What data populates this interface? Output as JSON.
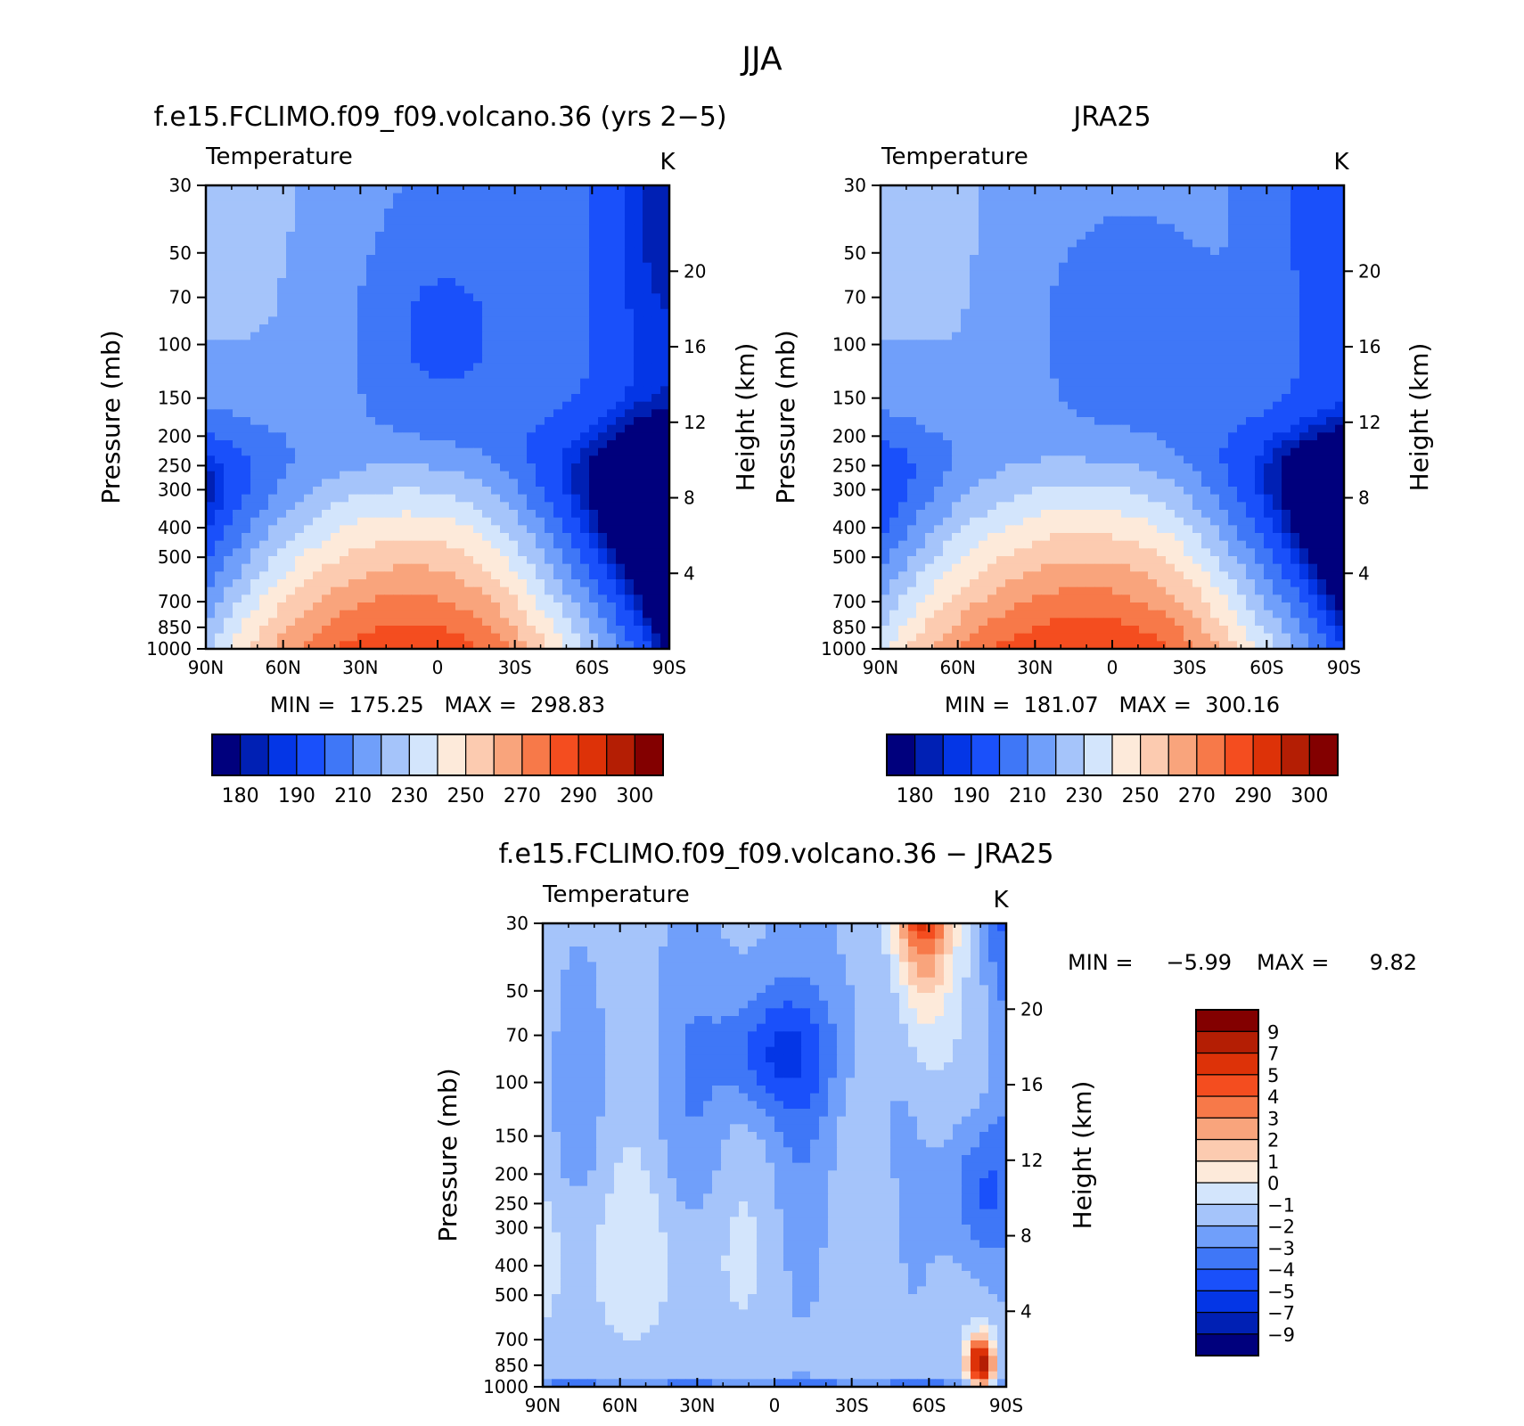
{
  "page": {
    "title": "JJA"
  },
  "colors": {
    "abs_palette": [
      "#00007d",
      "#0020b4",
      "#0436e6",
      "#1a50fa",
      "#3f77f7",
      "#709ffa",
      "#a5c4fa",
      "#d3e5fc",
      "#fdeada",
      "#fccbb0",
      "#f9a47c",
      "#f77949",
      "#f44d1f",
      "#dd3208",
      "#b41e04",
      "#830000"
    ],
    "diff_palette": [
      "#00007d",
      "#0020b4",
      "#0436e6",
      "#1a50fa",
      "#3f77f7",
      "#709ffa",
      "#a5c4fa",
      "#d3e5fc",
      "#fdeada",
      "#fccbb0",
      "#f9a47c",
      "#f77949",
      "#f44d1f",
      "#dd3208",
      "#b41e04",
      "#830000"
    ]
  },
  "chart_data": [
    {
      "type": "heatmap",
      "title": "f.e15.FCLIMO.f09_f09.volcano.36 (yrs 2−5)",
      "subtitle_left": "Temperature",
      "subtitle_right": "K",
      "ylabel": "Pressure (mb)",
      "ylabel_right": "Height (km)",
      "x_ticks": [
        "90N",
        "60N",
        "30N",
        "0",
        "30S",
        "60S",
        "90S"
      ],
      "y_ticks": [
        "30",
        "50",
        "70",
        "100",
        "150",
        "200",
        "250",
        "300",
        "400",
        "500",
        "700",
        "850",
        "1000"
      ],
      "y_right_ticks": [
        "20",
        "16",
        "12",
        "8",
        "4"
      ],
      "min_max_text": "MIN =  175.25   MAX =  298.83",
      "levels": [
        180,
        185,
        190,
        200,
        210,
        220,
        230,
        240,
        250,
        260,
        270,
        280,
        290,
        295,
        300
      ],
      "colorbar_labels": [
        "180",
        "190",
        "210",
        "230",
        "250",
        "270",
        "290",
        "300"
      ],
      "min": 175.25,
      "max": 298.83
    },
    {
      "type": "heatmap",
      "title": "JRA25",
      "subtitle_left": "Temperature",
      "subtitle_right": "K",
      "ylabel": "Pressure (mb)",
      "ylabel_right": "Height (km)",
      "x_ticks": [
        "90N",
        "60N",
        "30N",
        "0",
        "30S",
        "60S",
        "90S"
      ],
      "y_ticks": [
        "30",
        "50",
        "70",
        "100",
        "150",
        "200",
        "250",
        "300",
        "400",
        "500",
        "700",
        "850",
        "1000"
      ],
      "y_right_ticks": [
        "20",
        "16",
        "12",
        "8",
        "4"
      ],
      "min_max_text": "MIN =  181.07   MAX =  300.16",
      "levels": [
        180,
        185,
        190,
        200,
        210,
        220,
        230,
        240,
        250,
        260,
        270,
        280,
        290,
        295,
        300
      ],
      "colorbar_labels": [
        "180",
        "190",
        "210",
        "230",
        "250",
        "270",
        "290",
        "300"
      ],
      "min": 181.07,
      "max": 300.16
    },
    {
      "type": "heatmap",
      "title": "f.e15.FCLIMO.f09_f09.volcano.36 − JRA25",
      "subtitle_left": "Temperature",
      "subtitle_right": "K",
      "ylabel": "Pressure (mb)",
      "ylabel_right": "Height (km)",
      "x_ticks": [
        "90N",
        "60N",
        "30N",
        "0",
        "30S",
        "60S",
        "90S"
      ],
      "y_ticks": [
        "30",
        "50",
        "70",
        "100",
        "150",
        "200",
        "250",
        "300",
        "400",
        "500",
        "700",
        "850",
        "1000"
      ],
      "y_right_ticks": [
        "20",
        "16",
        "12",
        "8",
        "4"
      ],
      "min_label": "MIN =",
      "min_value": "−5.99",
      "max_label": "MAX =",
      "max_value": "9.82",
      "levels": [
        -9,
        -7,
        -5,
        -4,
        -3,
        -2,
        -1,
        0,
        1,
        2,
        3,
        4,
        5,
        7,
        9
      ],
      "colorbar_labels": [
        "9",
        "7",
        "5",
        "4",
        "3",
        "2",
        "1",
        "0",
        "−1",
        "−2",
        "−3",
        "−4",
        "−5",
        "−7",
        "−9"
      ],
      "min": -5.99,
      "max": 9.82
    }
  ]
}
